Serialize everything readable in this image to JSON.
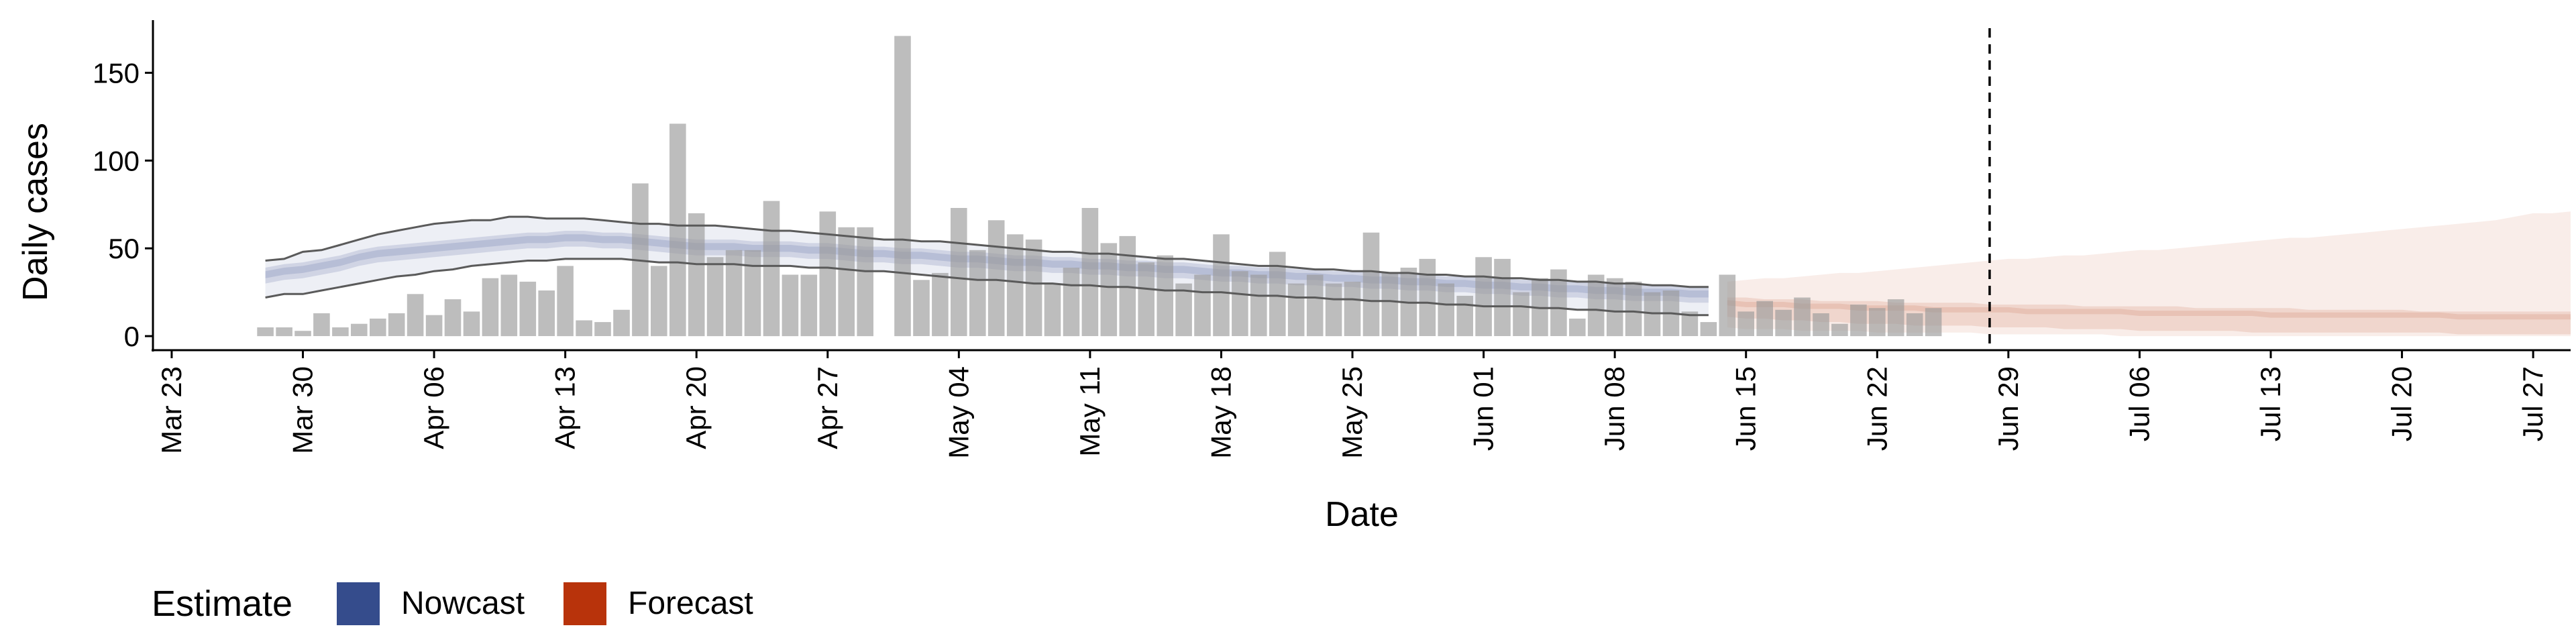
{
  "chart_data": {
    "type": "bar",
    "xlabel": "Date",
    "ylabel": "Daily cases",
    "xlim": [
      "2020-03-22",
      "2020-07-29"
    ],
    "ylim": [
      -8,
      180
    ],
    "y_ticks": [
      0,
      50,
      100,
      150
    ],
    "x_ticks": [
      {
        "date": "2020-03-23",
        "label": "Mar 23"
      },
      {
        "date": "2020-03-30",
        "label": "Mar 30"
      },
      {
        "date": "2020-04-06",
        "label": "Apr 06"
      },
      {
        "date": "2020-04-13",
        "label": "Apr 13"
      },
      {
        "date": "2020-04-20",
        "label": "Apr 20"
      },
      {
        "date": "2020-04-27",
        "label": "Apr 27"
      },
      {
        "date": "2020-05-04",
        "label": "May 04"
      },
      {
        "date": "2020-05-11",
        "label": "May 11"
      },
      {
        "date": "2020-05-18",
        "label": "May 18"
      },
      {
        "date": "2020-05-25",
        "label": "May 25"
      },
      {
        "date": "2020-06-01",
        "label": "Jun 01"
      },
      {
        "date": "2020-06-08",
        "label": "Jun 08"
      },
      {
        "date": "2020-06-15",
        "label": "Jun 15"
      },
      {
        "date": "2020-06-22",
        "label": "Jun 22"
      },
      {
        "date": "2020-06-29",
        "label": "Jun 29"
      },
      {
        "date": "2020-07-06",
        "label": "Jul 06"
      },
      {
        "date": "2020-07-13",
        "label": "Jul 13"
      },
      {
        "date": "2020-07-20",
        "label": "Jul 20"
      },
      {
        "date": "2020-07-27",
        "label": "Jul 27"
      }
    ],
    "grid": false,
    "legend_position": "bottom-left",
    "legend": {
      "title": "Estimate",
      "items": [
        {
          "label": "Nowcast",
          "color": "#354C8C"
        },
        {
          "label": "Forecast",
          "color": "#B8330B"
        }
      ]
    },
    "reference_line": {
      "date": "2020-06-28",
      "style": "dashed"
    },
    "observed_cases": {
      "start_date": "2020-03-28",
      "values": [
        5,
        5,
        3,
        13,
        5,
        7,
        10,
        13,
        24,
        12,
        21,
        14,
        33,
        35,
        31,
        26,
        40,
        9,
        8,
        15,
        87,
        40,
        121,
        70,
        45,
        49,
        49,
        77,
        35,
        35,
        71,
        62,
        62,
        0,
        171,
        32,
        36,
        73,
        49,
        66,
        58,
        55,
        30,
        39,
        73,
        53,
        57,
        42,
        46,
        30,
        35,
        58,
        37,
        35,
        48,
        30,
        35,
        30,
        31,
        59,
        36,
        39,
        44,
        30,
        23,
        45,
        44,
        25,
        33,
        38,
        10,
        35,
        33,
        31,
        25,
        26,
        14,
        8,
        35,
        14,
        20,
        15,
        22,
        13,
        7,
        18,
        16,
        21,
        13,
        16
      ]
    },
    "nowcast": {
      "start_date": "2020-03-28",
      "median": [
        35,
        37,
        38,
        40,
        42,
        45,
        47,
        48,
        49,
        50,
        51,
        52,
        53,
        54,
        55,
        55,
        56,
        56,
        55,
        55,
        54,
        53,
        52,
        51,
        51,
        51,
        50,
        50,
        50,
        49,
        49,
        48,
        47,
        47,
        46,
        46,
        45,
        44,
        44,
        43,
        42,
        42,
        41,
        41,
        40,
        40,
        39,
        39,
        38,
        38,
        37,
        36,
        36,
        35,
        35,
        34,
        34,
        33,
        33,
        32,
        32,
        31,
        31,
        30,
        30,
        29,
        29,
        28,
        28,
        27,
        27,
        26,
        26,
        25,
        25,
        25,
        24,
        24
      ],
      "inner_lower": [
        30,
        32,
        33,
        35,
        37,
        40,
        42,
        43,
        44,
        45,
        46,
        47,
        48,
        49,
        50,
        50,
        51,
        51,
        50,
        50,
        49,
        48,
        47,
        46,
        46,
        46,
        45,
        45,
        45,
        44,
        44,
        43,
        42,
        42,
        41,
        41,
        40,
        39,
        39,
        38,
        37,
        37,
        36,
        36,
        35,
        35,
        34,
        34,
        33,
        33,
        32,
        31,
        31,
        30,
        30,
        29,
        29,
        28,
        28,
        27,
        27,
        26,
        26,
        25,
        25,
        24,
        24,
        23,
        23,
        22,
        22,
        21,
        21,
        20,
        20,
        20,
        19,
        19
      ],
      "inner_upper": [
        39,
        41,
        42,
        44,
        46,
        49,
        51,
        52,
        53,
        54,
        55,
        56,
        57,
        58,
        59,
        59,
        60,
        60,
        59,
        59,
        58,
        57,
        56,
        55,
        55,
        55,
        54,
        54,
        54,
        53,
        53,
        52,
        51,
        51,
        50,
        50,
        49,
        48,
        48,
        47,
        46,
        46,
        45,
        45,
        44,
        44,
        43,
        43,
        42,
        42,
        41,
        40,
        40,
        39,
        39,
        38,
        38,
        37,
        37,
        36,
        36,
        35,
        35,
        34,
        34,
        33,
        33,
        32,
        32,
        31,
        31,
        30,
        30,
        29,
        29,
        29,
        28,
        28
      ],
      "outer_lower": [
        22,
        24,
        24,
        26,
        28,
        30,
        32,
        34,
        35,
        37,
        38,
        40,
        41,
        42,
        43,
        43,
        44,
        44,
        44,
        44,
        43,
        42,
        42,
        41,
        41,
        41,
        40,
        40,
        40,
        39,
        39,
        38,
        37,
        37,
        36,
        35,
        34,
        33,
        32,
        32,
        31,
        30,
        30,
        29,
        29,
        28,
        28,
        27,
        26,
        26,
        25,
        25,
        24,
        23,
        23,
        22,
        22,
        21,
        21,
        20,
        20,
        19,
        19,
        18,
        18,
        17,
        17,
        17,
        16,
        16,
        15,
        15,
        14,
        14,
        13,
        13,
        12,
        12
      ],
      "outer_upper": [
        43,
        44,
        48,
        49,
        52,
        55,
        58,
        60,
        62,
        64,
        65,
        66,
        66,
        68,
        68,
        67,
        67,
        67,
        66,
        65,
        64,
        64,
        63,
        63,
        63,
        62,
        61,
        60,
        60,
        59,
        58,
        57,
        56,
        55,
        55,
        54,
        54,
        53,
        52,
        51,
        50,
        49,
        48,
        48,
        47,
        47,
        46,
        45,
        44,
        44,
        43,
        42,
        41,
        40,
        40,
        39,
        38,
        38,
        37,
        37,
        36,
        36,
        35,
        35,
        34,
        34,
        33,
        33,
        32,
        32,
        31,
        31,
        30,
        30,
        29,
        29,
        28,
        28
      ]
    },
    "forecast": {
      "start_date": "2020-06-14",
      "median": [
        19,
        18,
        18,
        18,
        17,
        17,
        17,
        16,
        16,
        16,
        16,
        15,
        15,
        15,
        15,
        15,
        14,
        14,
        14,
        14,
        14,
        14,
        13,
        13,
        13,
        13,
        13,
        13,
        13,
        12,
        12,
        12,
        12,
        12,
        12,
        12,
        12,
        12,
        12,
        11,
        11,
        11,
        11,
        11,
        11,
        11
      ],
      "inner_lower": [
        11,
        10,
        10,
        9,
        9,
        8,
        8,
        7,
        7,
        7,
        6,
        6,
        6,
        6,
        5,
        5,
        5,
        5,
        4,
        4,
        4,
        4,
        3,
        3,
        3,
        3,
        3,
        3,
        2,
        2,
        2,
        2,
        2,
        2,
        2,
        2,
        2,
        2,
        2,
        1,
        1,
        1,
        1,
        1,
        1,
        1
      ],
      "inner_upper": [
        22,
        22,
        21,
        21,
        21,
        20,
        20,
        20,
        20,
        19,
        19,
        19,
        19,
        19,
        18,
        18,
        18,
        18,
        18,
        17,
        17,
        17,
        17,
        17,
        17,
        16,
        16,
        16,
        16,
        16,
        16,
        15,
        15,
        15,
        15,
        15,
        15,
        14,
        14,
        14,
        14,
        14,
        14,
        14,
        14,
        14
      ],
      "outer_lower": [
        5,
        4,
        4,
        4,
        3,
        3,
        3,
        3,
        2,
        2,
        2,
        2,
        2,
        2,
        1,
        1,
        1,
        1,
        1,
        1,
        1,
        0,
        0,
        0,
        0,
        0,
        0,
        0,
        0,
        0,
        0,
        0,
        0,
        0,
        0,
        0,
        0,
        0,
        0,
        0,
        0,
        0,
        0,
        0,
        0,
        0
      ],
      "outer_upper": [
        31,
        32,
        33,
        33,
        34,
        35,
        36,
        36,
        37,
        38,
        39,
        40,
        41,
        42,
        43,
        44,
        44,
        45,
        46,
        46,
        47,
        48,
        49,
        49,
        50,
        51,
        52,
        53,
        54,
        55,
        56,
        56,
        57,
        58,
        59,
        60,
        61,
        62,
        63,
        64,
        65,
        66,
        68,
        70,
        70,
        71
      ]
    }
  }
}
